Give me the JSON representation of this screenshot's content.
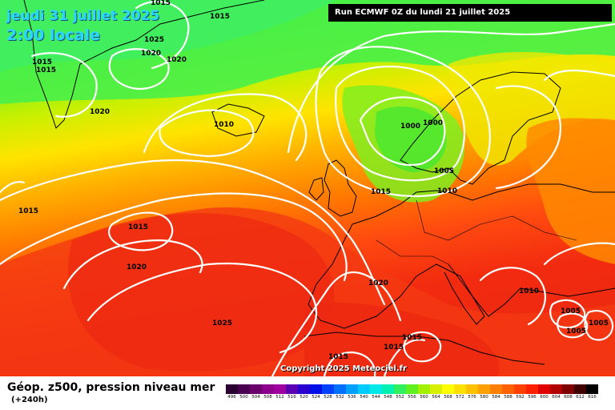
{
  "header": {
    "date": "jeudi 31 juillet 2025",
    "time": "2:00 locale",
    "run": "Run ECMWF 0Z du lundi 21 juillet 2025"
  },
  "footer": {
    "parameter": "Géop. z500, pression niveau mer",
    "step": "(+240h)",
    "copyright": "Copyright 2025 Meteociel.fr"
  },
  "isobar_labels": [
    "1015",
    "1015",
    "1025",
    "1020",
    "1020",
    "1015",
    "1015",
    "1020",
    "1010",
    "1000",
    "1000",
    "1005",
    "1010",
    "1015",
    "1015",
    "1015",
    "1020",
    "1020",
    "1025",
    "1015",
    "1015",
    "1015",
    "1010",
    "1005",
    "1005",
    "1005"
  ],
  "color_scale": {
    "labels": [
      "496",
      "500",
      "504",
      "508",
      "512",
      "516",
      "520",
      "524",
      "528",
      "532",
      "536",
      "540",
      "544",
      "548",
      "552",
      "556",
      "560",
      "564",
      "568",
      "572",
      "576",
      "580",
      "584",
      "588",
      "592",
      "596",
      "600",
      "604",
      "608",
      "612",
      "616"
    ],
    "colors": [
      "#2a0030",
      "#4a0050",
      "#6a006a",
      "#8c008c",
      "#a000a0",
      "#5a00b4",
      "#2800d0",
      "#0010e6",
      "#0040ff",
      "#0070ff",
      "#00a0ff",
      "#00ccff",
      "#00e8e8",
      "#00f0b0",
      "#30f060",
      "#60f020",
      "#a0f000",
      "#d8f000",
      "#ffff00",
      "#ffe000",
      "#ffc000",
      "#ffa000",
      "#ff8000",
      "#ff6000",
      "#ff4000",
      "#ff2000",
      "#e00000",
      "#b00000",
      "#800000",
      "#400000",
      "#000000"
    ]
  }
}
